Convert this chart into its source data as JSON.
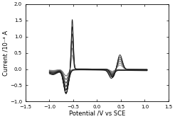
{
  "title": "",
  "xlabel": "Potential /V vs SCE",
  "ylabel": "Current /10⁻⁴ A",
  "xlim": [
    -1.5,
    1.5
  ],
  "ylim": [
    -1.0,
    2.0
  ],
  "xticks": [
    -1.5,
    -1.0,
    -0.5,
    0.0,
    0.5,
    1.0,
    1.5
  ],
  "yticks": [
    -1.0,
    -0.5,
    0.0,
    0.5,
    1.0,
    1.5,
    2.0
  ],
  "n_curves": 6,
  "background_color": "#ffffff",
  "figsize": [
    2.46,
    1.68
  ],
  "dpi": 100
}
